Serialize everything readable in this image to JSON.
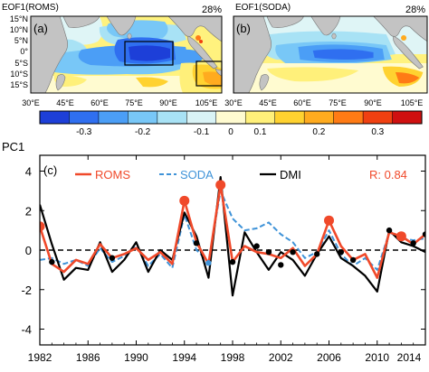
{
  "chart_data": [
    {
      "type": "heatmap",
      "panel": "(a)",
      "title": "EOF1(ROMS)",
      "explained_variance": "28%",
      "x_ticks": [
        "30°E",
        "45°E",
        "60°E",
        "75°E",
        "90°E",
        "105°E"
      ],
      "y_ticks": [
        "15°N",
        "10°N",
        "5°N",
        "0°",
        "5°S",
        "10°S",
        "15°S"
      ],
      "xlim": [
        30,
        113
      ],
      "ylim": [
        -16,
        17
      ]
    },
    {
      "type": "heatmap",
      "panel": "(b)",
      "title": "EOF1(SODA)",
      "explained_variance": "28%",
      "x_ticks": [
        "30°E",
        "45°E",
        "60°E",
        "75°E",
        "90°E",
        "105°E"
      ],
      "xlim": [
        30,
        113
      ],
      "ylim": [
        -16,
        17
      ]
    },
    {
      "type": "colorbar",
      "tick_labels": [
        "-0.3",
        "-0.2",
        "-0.1",
        "0",
        "0.1",
        "0.2",
        "0.3"
      ],
      "colors": [
        "#1d3fd8",
        "#2f6ff0",
        "#4b9ef6",
        "#78c7f7",
        "#a8e2f5",
        "#d9f3f6",
        "#fffbd0",
        "#fff07a",
        "#ffd230",
        "#ffab1f",
        "#ff7b15",
        "#f04011",
        "#cf1010"
      ]
    },
    {
      "type": "line",
      "panel": "(c)",
      "title": "PC1",
      "x": [
        1982,
        1983,
        1984,
        1985,
        1986,
        1987,
        1988,
        1989,
        1990,
        1991,
        1992,
        1993,
        1994,
        1995,
        1996,
        1997,
        1998,
        1999,
        2000,
        2001,
        2002,
        2003,
        2004,
        2005,
        2006,
        2007,
        2008,
        2009,
        2010,
        2011,
        2012,
        2013,
        2014
      ],
      "series": [
        {
          "name": "ROMS",
          "color": "#f0492a",
          "values": [
            1.2,
            -0.7,
            -1.1,
            -0.5,
            -0.7,
            0.3,
            -0.4,
            -0.2,
            0.1,
            -0.5,
            -0.1,
            -0.7,
            2.5,
            0.4,
            -0.7,
            3.3,
            -0.6,
            0.2,
            -0.1,
            -0.2,
            -0.4,
            0.1,
            -0.8,
            -0.2,
            1.5,
            0.2,
            -0.5,
            -0.2,
            -1.4,
            0.9,
            0.7,
            0.3,
            0.8
          ]
        },
        {
          "name": "SODA",
          "color": "#3f93d8",
          "values": [
            -0.5,
            -0.4,
            -0.7,
            -0.5,
            -0.8,
            0.1,
            -0.6,
            -0.3,
            0.2,
            -0.8,
            -0.2,
            -0.9,
            1.8,
            0.0,
            -0.6,
            3.0,
            1.6,
            1.0,
            1.1,
            1.4,
            0.8,
            0.4,
            -0.4,
            -0.1,
            1.0,
            -0.2,
            -0.8,
            -0.4,
            -1.0,
            0.9,
            0.6,
            0.5,
            0.6
          ]
        },
        {
          "name": "DMI",
          "color": "#000000",
          "values": [
            2.3,
            0.3,
            -1.5,
            -0.9,
            -1.0,
            0.4,
            -1.1,
            -0.5,
            0.4,
            -1.1,
            0.0,
            -0.5,
            1.9,
            0.7,
            -1.4,
            3.7,
            -2.3,
            0.9,
            -0.1,
            -1.0,
            -0.1,
            -0.5,
            -1.3,
            -0.2,
            0.7,
            -0.4,
            -0.8,
            -1.3,
            -2.1,
            1.0,
            0.4,
            0.2,
            -0.1
          ]
        }
      ],
      "markers": [
        {
          "x": 1982,
          "y": 1.2,
          "size": "large"
        },
        {
          "x": 1983,
          "y": -0.6,
          "size": "small"
        },
        {
          "x": 1988,
          "y": -0.4,
          "size": "small"
        },
        {
          "x": 1994,
          "y": 2.5,
          "size": "large"
        },
        {
          "x": 1995,
          "y": 0.35,
          "size": "small"
        },
        {
          "x": 1996,
          "y": -0.65,
          "size": "small"
        },
        {
          "x": 1997,
          "y": 3.3,
          "size": "large"
        },
        {
          "x": 1998,
          "y": -0.6,
          "size": "small"
        },
        {
          "x": 2000,
          "y": 0.2,
          "size": "small"
        },
        {
          "x": 2001,
          "y": -0.1,
          "size": "small"
        },
        {
          "x": 2002,
          "y": -0.75,
          "size": "small"
        },
        {
          "x": 2003,
          "y": -0.1,
          "size": "small"
        },
        {
          "x": 2005,
          "y": -0.2,
          "size": "small"
        },
        {
          "x": 2006,
          "y": 1.5,
          "size": "large"
        },
        {
          "x": 2007,
          "y": -0.1,
          "size": "small"
        },
        {
          "x": 2008,
          "y": -0.5,
          "size": "small"
        },
        {
          "x": 2011,
          "y": 1.0,
          "size": "small"
        },
        {
          "x": 2012,
          "y": 0.7,
          "size": "large"
        },
        {
          "x": 2013,
          "y": 0.35,
          "size": "small"
        },
        {
          "x": 2014,
          "y": 0.8,
          "size": "small"
        }
      ],
      "legend": [
        "ROMS",
        "SODA",
        "DMI"
      ],
      "annotation": "R: 0.84",
      "annotation_color": "#f0492a",
      "xlim": [
        1982,
        2014
      ],
      "ylim": [
        -4.8,
        4.8
      ],
      "x_ticks": [
        "1982",
        "1986",
        "1990",
        "1994",
        "1998",
        "2002",
        "2006",
        "2010",
        "2014"
      ],
      "y_ticks": [
        "4",
        "2",
        "0",
        "-2",
        "-4"
      ],
      "zero_line": "dashed"
    }
  ]
}
